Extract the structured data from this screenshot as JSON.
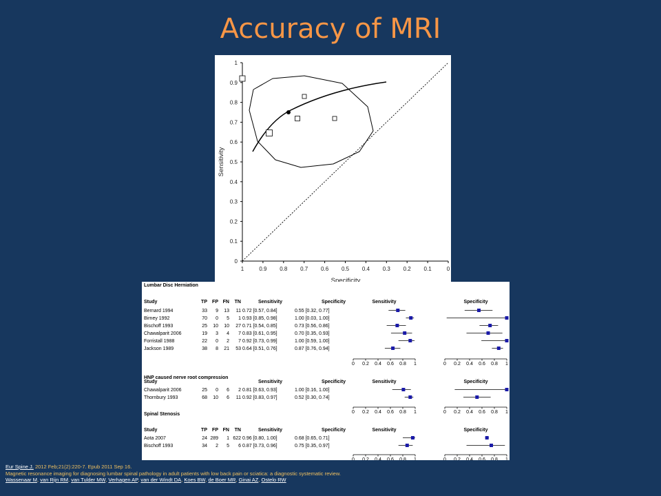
{
  "slide": {
    "title": "Accuracy of MRI"
  },
  "sroc": {
    "ylabel": "Sensitivity",
    "xlabel": "Specificity",
    "yticks": [
      "0",
      "0.1",
      "0.2",
      "0.3",
      "0.4",
      "0.5",
      "0.6",
      "0.7",
      "0.8",
      "0.9",
      "1"
    ],
    "xticks": [
      "1",
      "0.9",
      "0.8",
      "0.7",
      "0.6",
      "0.5",
      "0.4",
      "0.3",
      "0.2",
      "0.1",
      "0"
    ]
  },
  "forest": {
    "col_headers": {
      "study": "Study",
      "tp": "TP",
      "fp": "FP",
      "fn": "FN",
      "tn": "TN",
      "sens": "Sensitivity",
      "spec": "Specificity"
    },
    "plot_headers": {
      "sens": "Sensitivity",
      "spec": "Specificity"
    },
    "axis_ticks": [
      "0",
      "0.2",
      "0.4",
      "0.6",
      "0.8",
      "1"
    ],
    "sections": [
      {
        "title": "Lumbar Disc Herniation",
        "show_tp_headers": true,
        "rows": [
          {
            "study": "Bernard 1994",
            "tp": "33",
            "fp": "9",
            "fn": "13",
            "tn": "11",
            "sens": "0.72 [0.57, 0.84]",
            "spec": "0.55 [0.32, 0.77]"
          },
          {
            "study": "Birney 1992",
            "tp": "70",
            "fp": "0",
            "fn": "5",
            "tn": "1",
            "sens": "0.93 [0.85, 0.98]",
            "spec": "1.00 [0.03, 1.00]"
          },
          {
            "study": "Bischoff 1993",
            "tp": "25",
            "fp": "10",
            "fn": "10",
            "tn": "27",
            "sens": "0.71 [0.54, 0.85]",
            "spec": "0.73 [0.56, 0.86]"
          },
          {
            "study": "Chawalparit 2006",
            "tp": "19",
            "fp": "3",
            "fn": "4",
            "tn": "7",
            "sens": "0.83 [0.61, 0.95]",
            "spec": "0.70 [0.35, 0.93]"
          },
          {
            "study": "Forristall 1988",
            "tp": "22",
            "fp": "0",
            "fn": "2",
            "tn": "7",
            "sens": "0.92 [0.73, 0.99]",
            "spec": "1.00 [0.59, 1.00]"
          },
          {
            "study": "Jackson 1989",
            "tp": "38",
            "fp": "8",
            "fn": "21",
            "tn": "53",
            "sens": "0.64 [0.51, 0.76]",
            "spec": "0.87 [0.76, 0.94]"
          }
        ],
        "plot": [
          {
            "se": 0.72,
            "se_lo": 0.57,
            "se_hi": 0.84,
            "sp": 0.55,
            "sp_lo": 0.32,
            "sp_hi": 0.77
          },
          {
            "se": 0.93,
            "se_lo": 0.85,
            "se_hi": 0.98,
            "sp": 1.0,
            "sp_lo": 0.03,
            "sp_hi": 1.0
          },
          {
            "se": 0.71,
            "se_lo": 0.54,
            "se_hi": 0.85,
            "sp": 0.73,
            "sp_lo": 0.56,
            "sp_hi": 0.86
          },
          {
            "se": 0.83,
            "se_lo": 0.61,
            "se_hi": 0.95,
            "sp": 0.7,
            "sp_lo": 0.35,
            "sp_hi": 0.93
          },
          {
            "se": 0.92,
            "se_lo": 0.73,
            "se_hi": 0.99,
            "sp": 1.0,
            "sp_lo": 0.59,
            "sp_hi": 1.0
          },
          {
            "se": 0.64,
            "se_lo": 0.51,
            "se_hi": 0.76,
            "sp": 0.87,
            "sp_lo": 0.76,
            "sp_hi": 0.94
          }
        ]
      },
      {
        "title": "HNP caused nerve root compression",
        "show_tp_headers": false,
        "rows": [
          {
            "study": "Chawalparit 2006",
            "tp": "25",
            "fp": "0",
            "fn": "6",
            "tn": "2",
            "sens": "0.81 [0.63, 0.93]",
            "spec": "1.00 [0.16, 1.00]"
          },
          {
            "study": "Thornbury 1993",
            "tp": "68",
            "fp": "10",
            "fn": "6",
            "tn": "11",
            "sens": "0.92 [0.83, 0.97]",
            "spec": "0.52 [0.30, 0.74]"
          }
        ],
        "plot": [
          {
            "se": 0.81,
            "se_lo": 0.63,
            "se_hi": 0.93,
            "sp": 1.0,
            "sp_lo": 0.16,
            "sp_hi": 1.0
          },
          {
            "se": 0.92,
            "se_lo": 0.83,
            "se_hi": 0.97,
            "sp": 0.52,
            "sp_lo": 0.3,
            "sp_hi": 0.74
          }
        ]
      },
      {
        "title": "Spinal Stenosis",
        "show_tp_headers": true,
        "rows": [
          {
            "study": "Aota 2007",
            "tp": "24",
            "fp": "289",
            "fn": "1",
            "tn": "622",
            "sens": "0.96 [0.80, 1.00]",
            "spec": "0.68 [0.65, 0.71]"
          },
          {
            "study": "Bischoff 1993",
            "tp": "34",
            "fp": "2",
            "fn": "5",
            "tn": "6",
            "sens": "0.87 [0.73, 0.96]",
            "spec": "0.75 [0.35, 0.97]"
          }
        ],
        "plot": [
          {
            "se": 0.96,
            "se_lo": 0.8,
            "se_hi": 1.0,
            "sp": 0.68,
            "sp_lo": 0.65,
            "sp_hi": 0.71
          },
          {
            "se": 0.87,
            "se_lo": 0.73,
            "se_hi": 0.96,
            "sp": 0.75,
            "sp_lo": 0.35,
            "sp_hi": 0.97
          }
        ]
      }
    ]
  },
  "citation": {
    "journal": "Eur Spine J.",
    "details": "2012 Feb;21(2):220-7. Epub 2011 Sep 16.",
    "article_title": "Magnetic resonance imaging for diagnosing lumbar spinal pathology in adult patients with low back pain or sciatica: a diagnostic systematic review.",
    "authors": [
      "Wassenaar M",
      "van Rijn RM",
      "van Tulder MW",
      "Verhagen AP",
      "van der Windt DA",
      "Koes BW",
      "de Boer MR",
      "Ginai AZ",
      "Ostelo RW"
    ]
  }
}
